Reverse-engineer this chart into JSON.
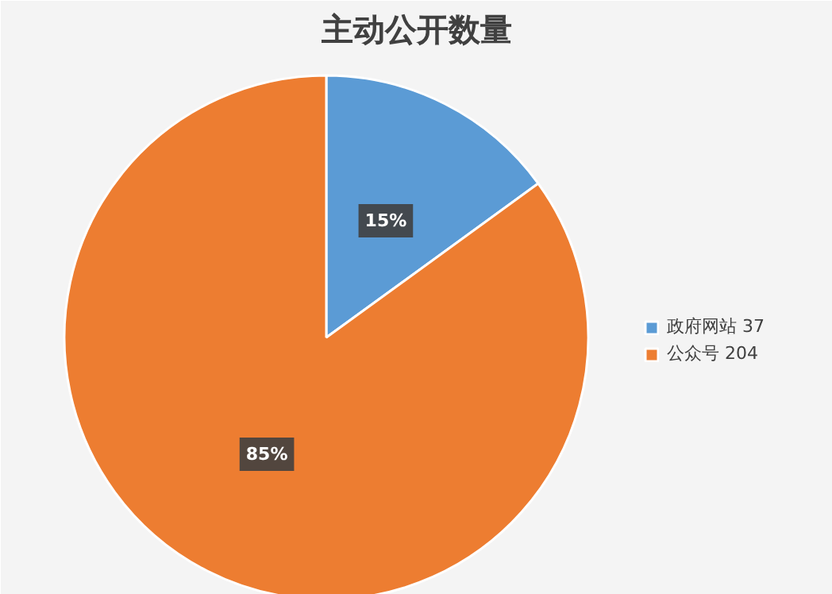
{
  "chart_data": {
    "type": "pie",
    "title": "主动公开数量",
    "categories": [
      "政府网站 37",
      "公众号 204"
    ],
    "values": [
      15,
      85
    ],
    "colors": [
      "#5b9bd5",
      "#ed7d31"
    ],
    "value_labels": [
      "15%",
      "85%"
    ],
    "legend": "right"
  }
}
